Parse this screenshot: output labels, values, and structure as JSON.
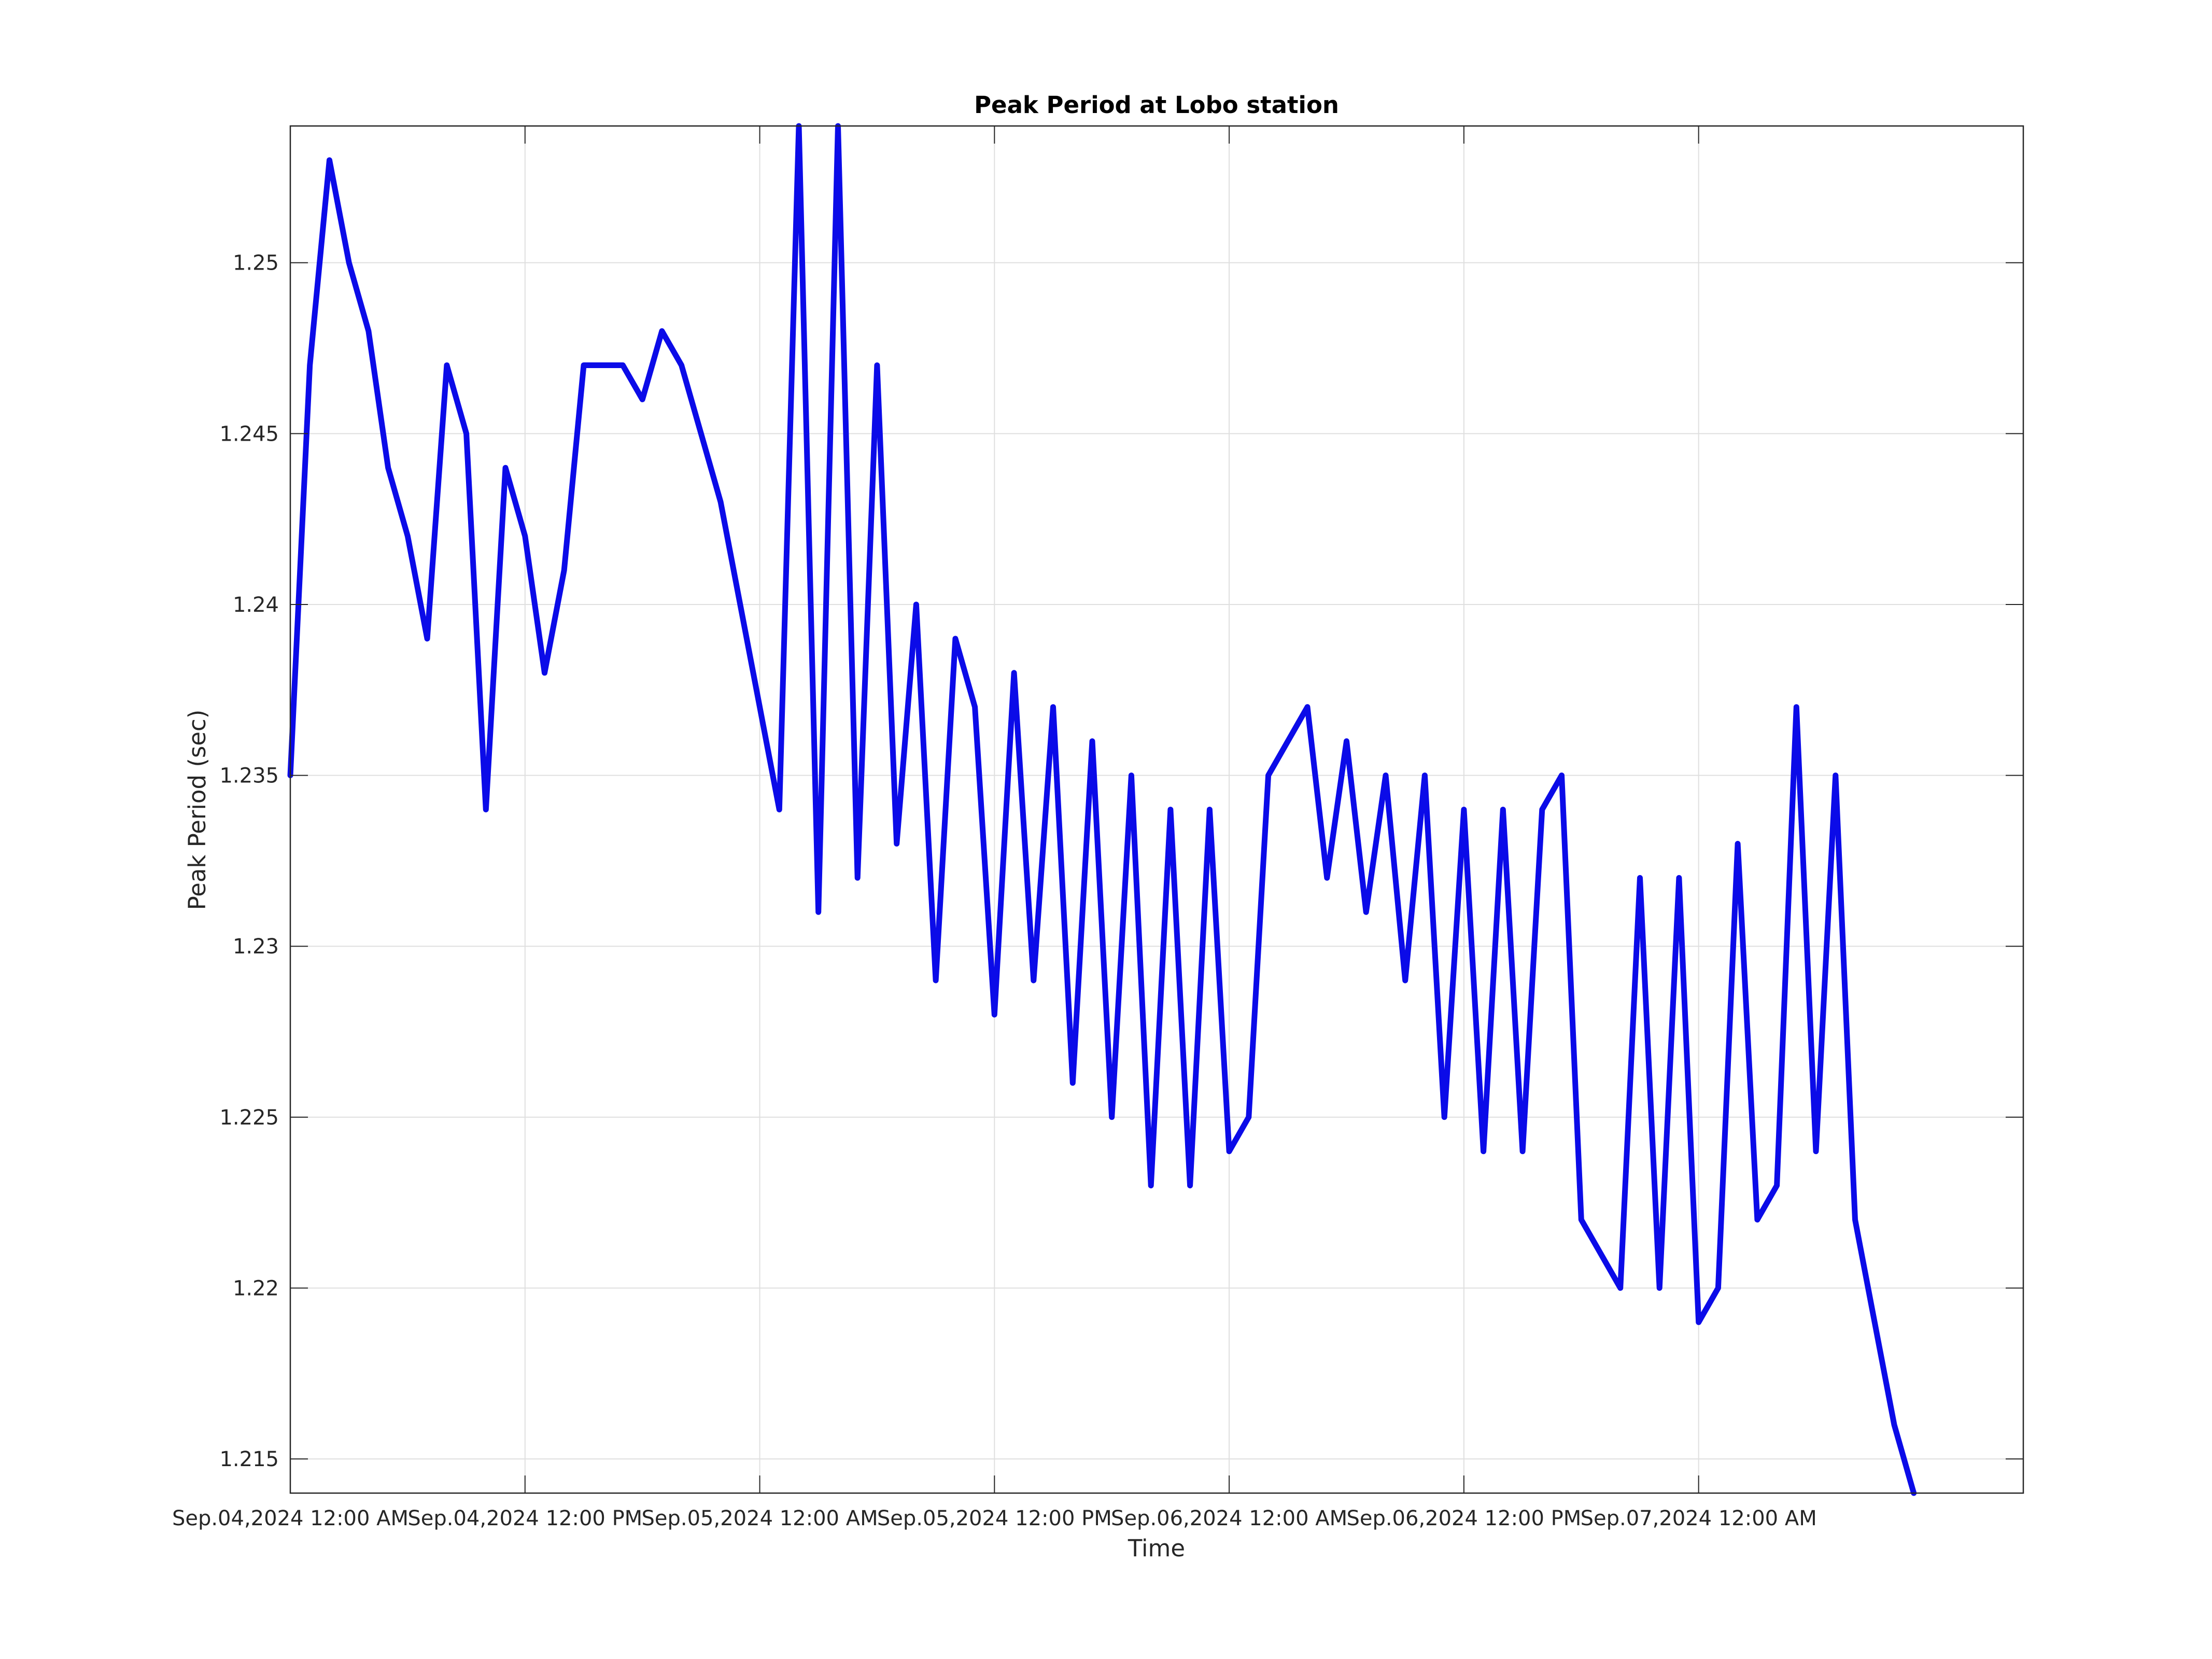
{
  "chart_data": {
    "type": "line",
    "title": "Peak Period at Lobo station",
    "xlabel": "Time",
    "ylabel": "Peak Period (sec)",
    "xlim": [
      "2024-09-04 00:00",
      "2024-09-07 16:36"
    ],
    "ylim": [
      1.214,
      1.254
    ],
    "grid": true,
    "line_color": "#0b0be8",
    "x_ticks": [
      {
        "value": "2024-09-04 00:00",
        "label": "Sep.04,2024 12:00 AM"
      },
      {
        "value": "2024-09-04 12:00",
        "label": "Sep.04,2024 12:00 PM"
      },
      {
        "value": "2024-09-05 00:00",
        "label": "Sep.05,2024 12:00 AM"
      },
      {
        "value": "2024-09-05 12:00",
        "label": "Sep.05,2024 12:00 PM"
      },
      {
        "value": "2024-09-06 00:00",
        "label": "Sep.06,2024 12:00 AM"
      },
      {
        "value": "2024-09-06 12:00",
        "label": "Sep.06,2024 12:00 PM"
      },
      {
        "value": "2024-09-07 00:00",
        "label": "Sep.07,2024 12:00 AM"
      }
    ],
    "y_ticks": [
      {
        "value": 1.215,
        "label": "1.215"
      },
      {
        "value": 1.22,
        "label": "1.22"
      },
      {
        "value": 1.225,
        "label": "1.225"
      },
      {
        "value": 1.23,
        "label": "1.23"
      },
      {
        "value": 1.235,
        "label": "1.235"
      },
      {
        "value": 1.24,
        "label": "1.24"
      },
      {
        "value": 1.245,
        "label": "1.245"
      },
      {
        "value": 1.25,
        "label": "1.25"
      }
    ],
    "series": [
      {
        "values": [
          [
            "2024-09-04 00:00",
            1.235
          ],
          [
            "2024-09-04 01:00",
            1.247
          ],
          [
            "2024-09-04 02:00",
            1.253
          ],
          [
            "2024-09-04 03:00",
            1.25
          ],
          [
            "2024-09-04 04:00",
            1.248
          ],
          [
            "2024-09-04 05:00",
            1.244
          ],
          [
            "2024-09-04 06:00",
            1.242
          ],
          [
            "2024-09-04 07:00",
            1.239
          ],
          [
            "2024-09-04 08:00",
            1.247
          ],
          [
            "2024-09-04 09:00",
            1.245
          ],
          [
            "2024-09-04 10:00",
            1.234
          ],
          [
            "2024-09-04 11:00",
            1.244
          ],
          [
            "2024-09-04 12:00",
            1.242
          ],
          [
            "2024-09-04 13:00",
            1.238
          ],
          [
            "2024-09-04 14:00",
            1.241
          ],
          [
            "2024-09-04 15:00",
            1.247
          ],
          [
            "2024-09-04 16:00",
            1.247
          ],
          [
            "2024-09-04 17:00",
            1.247
          ],
          [
            "2024-09-04 18:00",
            1.246
          ],
          [
            "2024-09-04 19:00",
            1.248
          ],
          [
            "2024-09-04 20:00",
            1.247
          ],
          [
            "2024-09-04 22:00",
            1.243
          ],
          [
            "2024-09-05 01:00",
            1.234
          ],
          [
            "2024-09-05 02:00",
            1.254
          ],
          [
            "2024-09-05 03:00",
            1.231
          ],
          [
            "2024-09-05 04:00",
            1.254
          ],
          [
            "2024-09-05 05:00",
            1.232
          ],
          [
            "2024-09-05 06:00",
            1.247
          ],
          [
            "2024-09-05 07:00",
            1.233
          ],
          [
            "2024-09-05 08:00",
            1.24
          ],
          [
            "2024-09-05 09:00",
            1.229
          ],
          [
            "2024-09-05 10:00",
            1.239
          ],
          [
            "2024-09-05 11:00",
            1.237
          ],
          [
            "2024-09-05 12:00",
            1.228
          ],
          [
            "2024-09-05 13:00",
            1.238
          ],
          [
            "2024-09-05 14:00",
            1.229
          ],
          [
            "2024-09-05 15:00",
            1.237
          ],
          [
            "2024-09-05 16:00",
            1.226
          ],
          [
            "2024-09-05 17:00",
            1.236
          ],
          [
            "2024-09-05 18:00",
            1.225
          ],
          [
            "2024-09-05 19:00",
            1.235
          ],
          [
            "2024-09-05 20:00",
            1.223
          ],
          [
            "2024-09-05 21:00",
            1.234
          ],
          [
            "2024-09-05 22:00",
            1.223
          ],
          [
            "2024-09-05 23:00",
            1.234
          ],
          [
            "2024-09-06 00:00",
            1.224
          ],
          [
            "2024-09-06 01:00",
            1.225
          ],
          [
            "2024-09-06 02:00",
            1.235
          ],
          [
            "2024-09-06 04:00",
            1.237
          ],
          [
            "2024-09-06 05:00",
            1.232
          ],
          [
            "2024-09-06 06:00",
            1.236
          ],
          [
            "2024-09-06 07:00",
            1.231
          ],
          [
            "2024-09-06 08:00",
            1.235
          ],
          [
            "2024-09-06 09:00",
            1.229
          ],
          [
            "2024-09-06 10:00",
            1.235
          ],
          [
            "2024-09-06 11:00",
            1.225
          ],
          [
            "2024-09-06 12:00",
            1.234
          ],
          [
            "2024-09-06 13:00",
            1.224
          ],
          [
            "2024-09-06 14:00",
            1.234
          ],
          [
            "2024-09-06 15:00",
            1.224
          ],
          [
            "2024-09-06 16:00",
            1.234
          ],
          [
            "2024-09-06 17:00",
            1.235
          ],
          [
            "2024-09-06 18:00",
            1.222
          ],
          [
            "2024-09-06 20:00",
            1.22
          ],
          [
            "2024-09-06 21:00",
            1.232
          ],
          [
            "2024-09-06 22:00",
            1.22
          ],
          [
            "2024-09-06 23:00",
            1.232
          ],
          [
            "2024-09-07 00:00",
            1.219
          ],
          [
            "2024-09-07 01:00",
            1.22
          ],
          [
            "2024-09-07 02:00",
            1.233
          ],
          [
            "2024-09-07 03:00",
            1.222
          ],
          [
            "2024-09-07 04:00",
            1.223
          ],
          [
            "2024-09-07 05:00",
            1.237
          ],
          [
            "2024-09-07 06:00",
            1.224
          ],
          [
            "2024-09-07 07:00",
            1.235
          ],
          [
            "2024-09-07 08:00",
            1.222
          ],
          [
            "2024-09-07 09:00",
            1.219
          ],
          [
            "2024-09-07 10:00",
            1.216
          ],
          [
            "2024-09-07 11:00",
            1.214
          ]
        ]
      }
    ]
  }
}
